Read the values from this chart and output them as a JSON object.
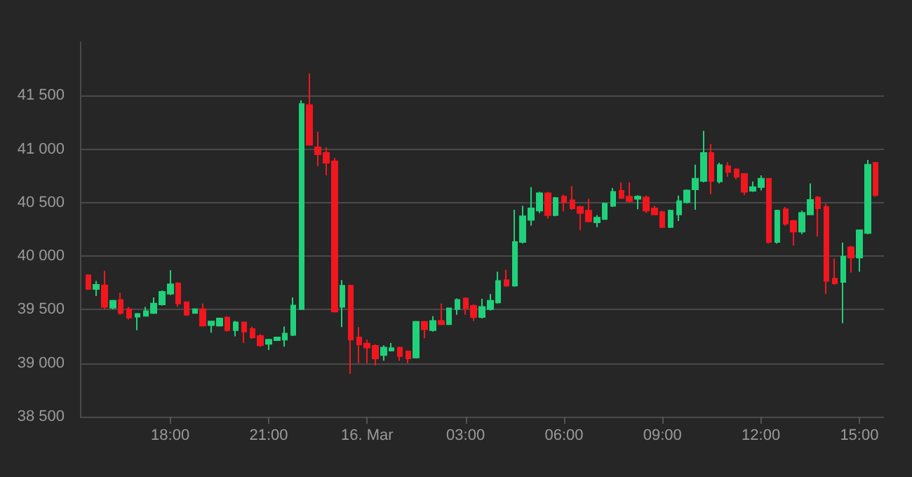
{
  "chart_data": {
    "type": "candlestick",
    "x": [
      "--03-15T15:30",
      "--03-15T15:45",
      "--03-15T16:00",
      "--03-15T16:15",
      "--03-15T16:30",
      "--03-15T16:45",
      "--03-15T17:00",
      "--03-15T17:15",
      "--03-15T17:30",
      "--03-15T17:45",
      "--03-15T18:00",
      "--03-15T18:15",
      "--03-15T18:30",
      "--03-15T18:45",
      "--03-15T19:00",
      "--03-15T19:15",
      "--03-15T19:30",
      "--03-15T19:45",
      "--03-15T20:00",
      "--03-15T20:15",
      "--03-15T20:30",
      "--03-15T20:45",
      "--03-15T21:00",
      "--03-15T21:15",
      "--03-15T21:30",
      "--03-15T21:45",
      "--03-15T22:00",
      "--03-15T22:15",
      "--03-15T22:30",
      "--03-15T22:45",
      "--03-15T23:00",
      "--03-15T23:15",
      "--03-15T23:30",
      "--03-15T23:45",
      "--03-16T00:00",
      "--03-16T00:15",
      "--03-16T00:30",
      "--03-16T00:45",
      "--03-16T01:00",
      "--03-16T01:15",
      "--03-16T01:30",
      "--03-16T01:45",
      "--03-16T02:00",
      "--03-16T02:15",
      "--03-16T02:30",
      "--03-16T02:45",
      "--03-16T03:00",
      "--03-16T03:15",
      "--03-16T03:30",
      "--03-16T03:45",
      "--03-16T04:00",
      "--03-16T04:15",
      "--03-16T04:30",
      "--03-16T04:45",
      "--03-16T05:00",
      "--03-16T05:15",
      "--03-16T05:30",
      "--03-16T05:45",
      "--03-16T06:00",
      "--03-16T06:15",
      "--03-16T06:30",
      "--03-16T06:45",
      "--03-16T07:00",
      "--03-16T07:15",
      "--03-16T07:30",
      "--03-16T07:45",
      "--03-16T08:00",
      "--03-16T08:15",
      "--03-16T08:30",
      "--03-16T08:45",
      "--03-16T09:00",
      "--03-16T09:15",
      "--03-16T09:30",
      "--03-16T09:45",
      "--03-16T10:00",
      "--03-16T10:15",
      "--03-16T10:30",
      "--03-16T10:45",
      "--03-16T11:00",
      "--03-16T11:15",
      "--03-16T11:30",
      "--03-16T11:45",
      "--03-16T12:00",
      "--03-16T12:15",
      "--03-16T12:30",
      "--03-16T12:45",
      "--03-16T13:00",
      "--03-16T13:15",
      "--03-16T13:30",
      "--03-16T13:45",
      "--03-16T14:00",
      "--03-16T14:15",
      "--03-16T14:30",
      "--03-16T14:45",
      "--03-16T15:00",
      "--03-16T15:15",
      "--03-16T15:30"
    ],
    "ohlc": [
      [
        39820,
        39830,
        39685,
        39693
      ],
      [
        39693,
        39768,
        39627,
        39732
      ],
      [
        39728,
        39864,
        39504,
        39526
      ],
      [
        39517,
        39592,
        39504,
        39583
      ],
      [
        39592,
        39658,
        39452,
        39469
      ],
      [
        39504,
        39526,
        39408,
        39425
      ],
      [
        39434,
        39469,
        39307,
        39460
      ],
      [
        39443,
        39526,
        39439,
        39487
      ],
      [
        39469,
        39614,
        39460,
        39557
      ],
      [
        39548,
        39680,
        39539,
        39667
      ],
      [
        39649,
        39868,
        39636,
        39737
      ],
      [
        39746,
        39755,
        39526,
        39557
      ],
      [
        39570,
        39570,
        39443,
        39452
      ],
      [
        39469,
        39513,
        39465,
        39504
      ],
      [
        39504,
        39557,
        39342,
        39351
      ],
      [
        39355,
        39395,
        39285,
        39390
      ],
      [
        39351,
        39425,
        39342,
        39417
      ],
      [
        39425,
        39439,
        39294,
        39307
      ],
      [
        39307,
        39395,
        39250,
        39382
      ],
      [
        39382,
        39382,
        39189,
        39294
      ],
      [
        39320,
        39342,
        39228,
        39241
      ],
      [
        39254,
        39272,
        39153,
        39167
      ],
      [
        39180,
        39228,
        39123,
        39219
      ],
      [
        39215,
        39245,
        39211,
        39241
      ],
      [
        39219,
        39342,
        39153,
        39276
      ],
      [
        39263,
        39614,
        39254,
        39539
      ],
      [
        39504,
        41456,
        39496,
        41421
      ],
      [
        41412,
        41706,
        41031,
        41039
      ],
      [
        41017,
        41162,
        40842,
        40952
      ],
      [
        40965,
        41017,
        40754,
        40873
      ],
      [
        40886,
        40917,
        39474,
        39482
      ],
      [
        39526,
        39776,
        39338,
        39724
      ],
      [
        39724,
        39732,
        38899,
        39219
      ],
      [
        39241,
        39338,
        39000,
        39175
      ],
      [
        39184,
        39219,
        39000,
        39145
      ],
      [
        39162,
        39175,
        38978,
        39044
      ],
      [
        39075,
        39167,
        39022,
        39145
      ],
      [
        39118,
        39188,
        39110,
        39140
      ],
      [
        39145,
        39153,
        39022,
        39066
      ],
      [
        39110,
        39118,
        39000,
        39044
      ],
      [
        39053,
        39395,
        39044,
        39386
      ],
      [
        39386,
        39395,
        39232,
        39316
      ],
      [
        39307,
        39439,
        39294,
        39395
      ],
      [
        39395,
        39557,
        39355,
        39364
      ],
      [
        39364,
        39517,
        39360,
        39513
      ],
      [
        39504,
        39605,
        39452,
        39592
      ],
      [
        39605,
        39614,
        39452,
        39513
      ],
      [
        39535,
        39548,
        39395,
        39430
      ],
      [
        39430,
        39601,
        39417,
        39526
      ],
      [
        39504,
        39645,
        39491,
        39583
      ],
      [
        39566,
        39855,
        39557,
        39768
      ],
      [
        39776,
        39873,
        39715,
        39724
      ],
      [
        39724,
        40434,
        39715,
        40132
      ],
      [
        40132,
        40469,
        40118,
        40373
      ],
      [
        40338,
        40645,
        40285,
        40447
      ],
      [
        40425,
        40601,
        40403,
        40588
      ],
      [
        40588,
        40601,
        40351,
        40382
      ],
      [
        40382,
        40553,
        40373,
        40544
      ],
      [
        40557,
        40575,
        40417,
        40504
      ],
      [
        40522,
        40654,
        40434,
        40447
      ],
      [
        40460,
        40469,
        40241,
        40403
      ],
      [
        40425,
        40535,
        40316,
        40325
      ],
      [
        40316,
        40382,
        40272,
        40360
      ],
      [
        40347,
        40500,
        40338,
        40491
      ],
      [
        40469,
        40636,
        40460,
        40601
      ],
      [
        40610,
        40689,
        40535,
        40544
      ],
      [
        40557,
        40689,
        40504,
        40513
      ],
      [
        40535,
        40570,
        40438,
        40557
      ],
      [
        40548,
        40566,
        40403,
        40425
      ],
      [
        40447,
        40469,
        40382,
        40390
      ],
      [
        40412,
        40425,
        40263,
        40272
      ],
      [
        40272,
        40434,
        40263,
        40425
      ],
      [
        40390,
        40566,
        40329,
        40513
      ],
      [
        40504,
        40623,
        40491,
        40614
      ],
      [
        40623,
        40855,
        40434,
        40724
      ],
      [
        40702,
        41171,
        40689,
        40965
      ],
      [
        40965,
        41048,
        40579,
        40702
      ],
      [
        40698,
        40873,
        40680,
        40851
      ],
      [
        40842,
        40877,
        40741,
        40785
      ],
      [
        40811,
        40820,
        40719,
        40741
      ],
      [
        40768,
        40776,
        40570,
        40601
      ],
      [
        40610,
        40697,
        40601,
        40645
      ],
      [
        40645,
        40754,
        40614,
        40724
      ],
      [
        40724,
        40732,
        40118,
        40132
      ],
      [
        40132,
        40434,
        40118,
        40425
      ],
      [
        40439,
        40460,
        40285,
        40303
      ],
      [
        40329,
        40338,
        40097,
        40228
      ],
      [
        40228,
        40425,
        40206,
        40404
      ],
      [
        40390,
        40680,
        40382,
        40526
      ],
      [
        40548,
        40561,
        40184,
        40447
      ],
      [
        40460,
        40491,
        39645,
        39768
      ],
      [
        39789,
        39978,
        39732,
        39746
      ],
      [
        39759,
        40127,
        39373,
        39996
      ],
      [
        40083,
        40096,
        39847,
        39987
      ],
      [
        39987,
        40250,
        39855,
        40241
      ],
      [
        40215,
        40899,
        40206,
        40855
      ],
      [
        40873,
        40873,
        40557,
        40570
      ]
    ],
    "xlim": [
      "--03-15T15:15",
      "--03-16T15:45"
    ],
    "xticks": [
      {
        "value": "--03-15T18:00",
        "label": "18:00"
      },
      {
        "value": "--03-15T21:00",
        "label": "21:00"
      },
      {
        "value": "--03-16T00:00",
        "label": "16. Mar"
      },
      {
        "value": "--03-16T03:00",
        "label": "03:00"
      },
      {
        "value": "--03-16T06:00",
        "label": "06:00"
      },
      {
        "value": "--03-16T09:00",
        "label": "09:00"
      },
      {
        "value": "--03-16T12:00",
        "label": "12:00"
      },
      {
        "value": "--03-16T15:00",
        "label": "15:00"
      }
    ],
    "ylim": [
      38500,
      42000
    ],
    "yticks": [
      {
        "value": 38500,
        "label": "38 500"
      },
      {
        "value": 39000,
        "label": "39 000"
      },
      {
        "value": 39500,
        "label": "39 500"
      },
      {
        "value": 40000,
        "label": "40 000"
      },
      {
        "value": 40500,
        "label": "40 500"
      },
      {
        "value": 41000,
        "label": "41 000"
      },
      {
        "value": 41500,
        "label": "41 500"
      }
    ],
    "grid": "y"
  }
}
